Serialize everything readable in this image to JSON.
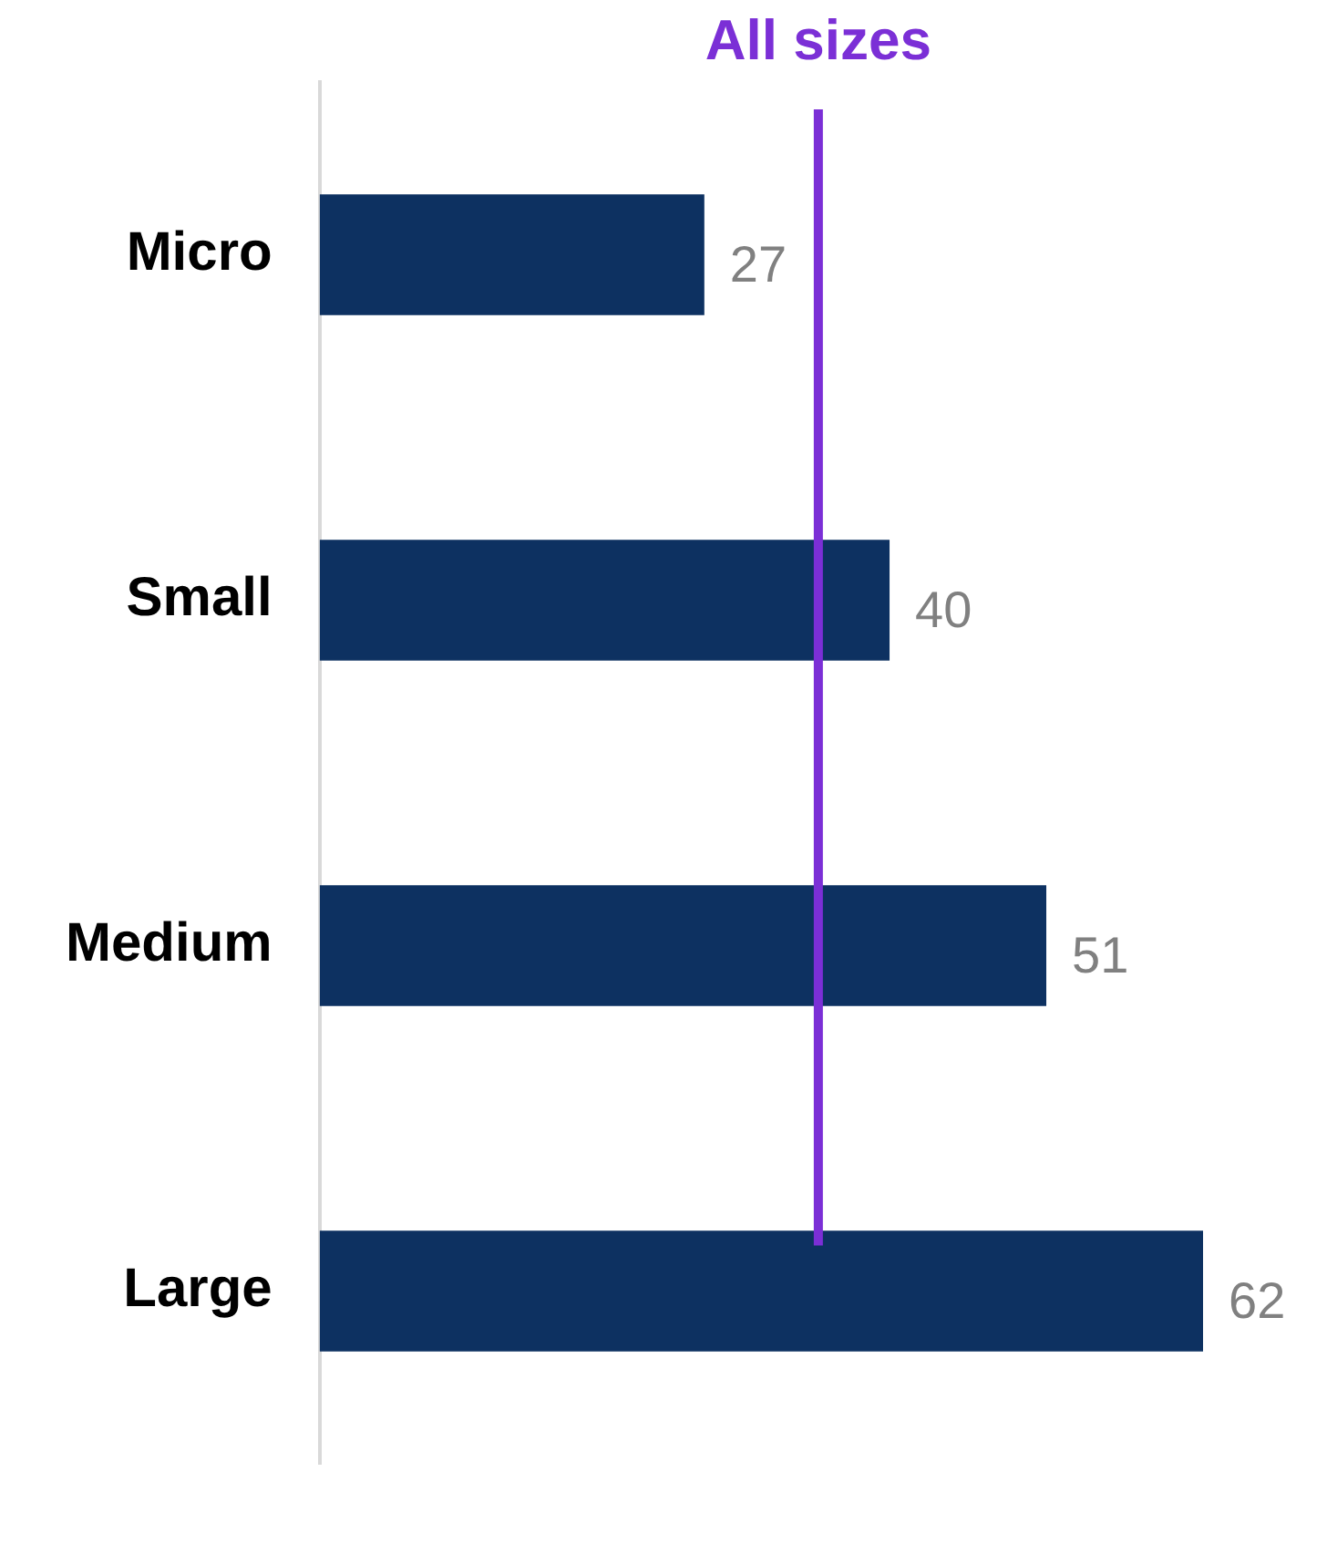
{
  "chart_data": {
    "type": "bar",
    "orientation": "horizontal",
    "categories": [
      "Micro",
      "Small",
      "Medium",
      "Large"
    ],
    "values": [
      27,
      40,
      51,
      62
    ],
    "color": "#0d3161",
    "data_labels": true,
    "tick_labels": "y",
    "grid": false,
    "legend": false,
    "ref_lines": [
      {
        "axis": "x",
        "value": 35,
        "label": "All sizes",
        "color": "#7b2fd6"
      }
    ]
  }
}
